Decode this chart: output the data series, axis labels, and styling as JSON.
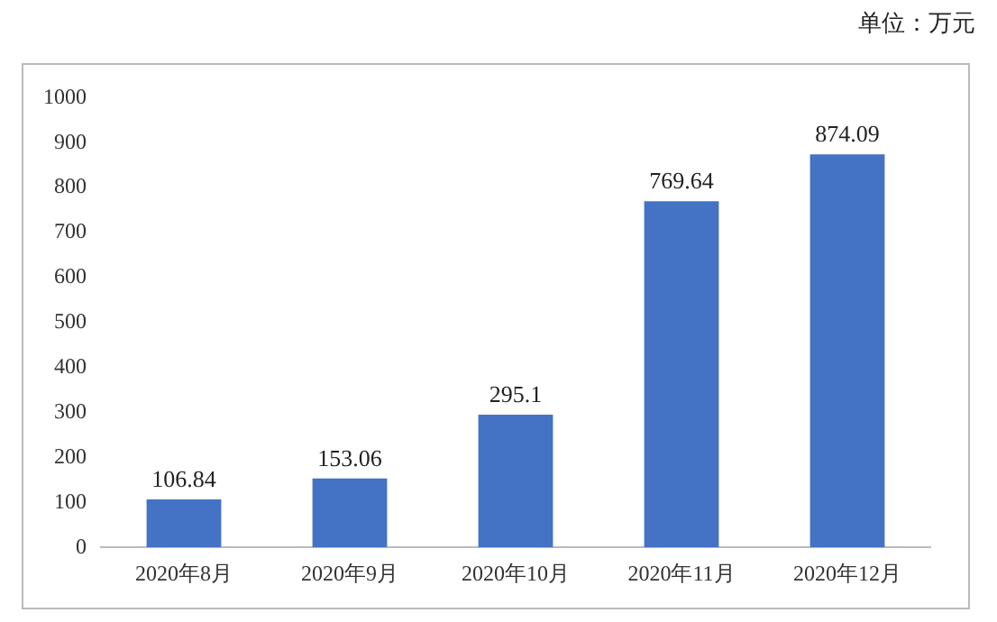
{
  "chart_data": {
    "type": "bar",
    "annotations": [
      "单位：万元"
    ],
    "categories": [
      "2020年8月",
      "2020年9月",
      "2020年10月",
      "2020年11月",
      "2020年12月"
    ],
    "values": [
      106.84,
      153.06,
      295.1,
      769.64,
      874.09
    ],
    "color": "#4472c4",
    "ylim": [
      0,
      1000
    ],
    "yticks": [
      0,
      100,
      200,
      300,
      400,
      500,
      600,
      700,
      800,
      900,
      1000
    ],
    "grid": false,
    "data_labels": true
  }
}
